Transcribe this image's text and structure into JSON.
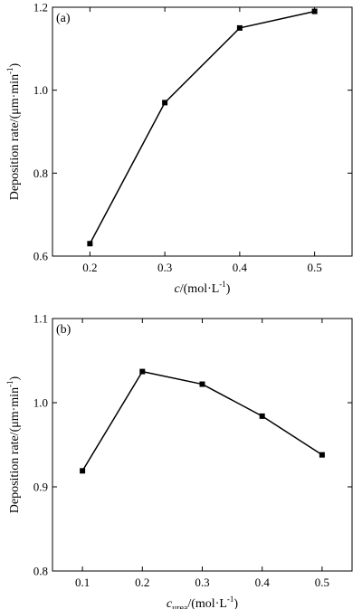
{
  "chart_data": [
    {
      "type": "line",
      "panel_label": "(a)",
      "x": [
        0.2,
        0.3,
        0.4,
        0.5
      ],
      "y": [
        0.63,
        0.97,
        1.15,
        1.19
      ],
      "xlim": [
        0.15,
        0.55
      ],
      "ylim": [
        0.6,
        1.2
      ],
      "xticks": [
        "0.2",
        "0.3",
        "0.4",
        "0.5"
      ],
      "yticks": [
        "0.6",
        "0.8",
        "1.0",
        "1.2"
      ],
      "xlabel_var": "c",
      "xlabel_sub": "",
      "xlabel_unit": "/(mol·L",
      "xlabel_sup": "-1",
      "xlabel_close": ")",
      "ylabel_main": "Deposition rate/(μm·min",
      "ylabel_sup": "-1",
      "ylabel_close": ")",
      "grid": false,
      "marker": "square",
      "color": "#000000"
    },
    {
      "type": "line",
      "panel_label": "(b)",
      "x": [
        0.1,
        0.2,
        0.3,
        0.4,
        0.5
      ],
      "y": [
        0.919,
        1.037,
        1.022,
        0.984,
        0.938
      ],
      "xlim": [
        0.05,
        0.55
      ],
      "ylim": [
        0.8,
        1.1
      ],
      "xticks": [
        "0.1",
        "0.2",
        "0.3",
        "0.4",
        "0.5"
      ],
      "yticks": [
        "0.8",
        "0.9",
        "1.0",
        "1.1"
      ],
      "xlabel_var": "c",
      "xlabel_sub": "urea",
      "xlabel_unit": "/(mol·L",
      "xlabel_sup": "-1",
      "xlabel_close": ")",
      "ylabel_main": "Deposition rate/(μm·min",
      "ylabel_sup": "-1",
      "ylabel_close": ")",
      "grid": false,
      "marker": "square",
      "color": "#000000"
    }
  ]
}
